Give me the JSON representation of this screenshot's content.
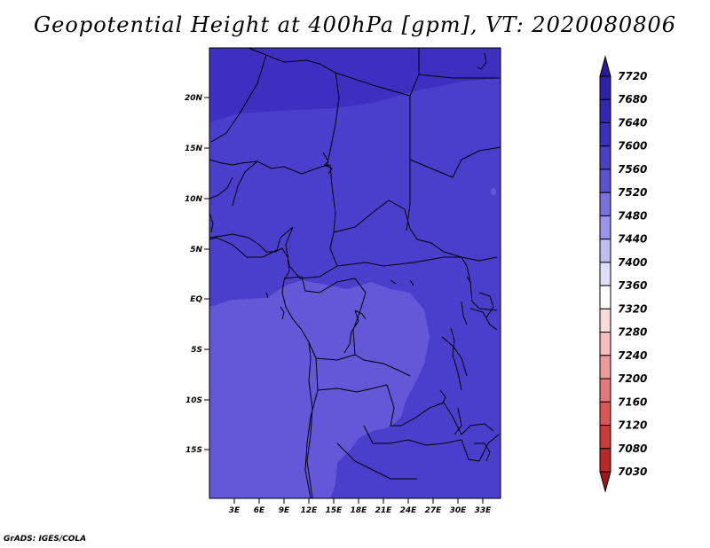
{
  "title": "Geopotential Height at 400hPa [gpm], VT: 2020080806",
  "credit": "GrADS: IGES/COLA",
  "map": {
    "lat_labels": [
      "20N",
      "15N",
      "10N",
      "5N",
      "EQ",
      "5S",
      "10S",
      "15S"
    ],
    "lon_labels": [
      "3E",
      "6E",
      "9E",
      "12E",
      "15E",
      "18E",
      "21E",
      "24E",
      "27E",
      "30E",
      "33E"
    ]
  },
  "colorbar": {
    "labels": [
      "7720",
      "7680",
      "7640",
      "7600",
      "7560",
      "7520",
      "7480",
      "7440",
      "7400",
      "7360",
      "7320",
      "7280",
      "7240",
      "7200",
      "7160",
      "7120",
      "7080",
      "7030"
    ],
    "colors": [
      "#2a1a9a",
      "#2f22a8",
      "#3326b2",
      "#3a30bc",
      "#4a40c8",
      "#5c52d4",
      "#7a70e0",
      "#9c94ea",
      "#c0bcf2",
      "#e0defa",
      "#ffffff",
      "#fbdada",
      "#f6bcbc",
      "#ef9a9a",
      "#e57878",
      "#da5656",
      "#cc3a3a",
      "#b82828",
      "#a01818"
    ]
  },
  "colors": {
    "level_7680": "#3320a8",
    "level_7640": "#4332c2",
    "level_7600": "#5448d0",
    "level_7560": "#6458d8"
  }
}
